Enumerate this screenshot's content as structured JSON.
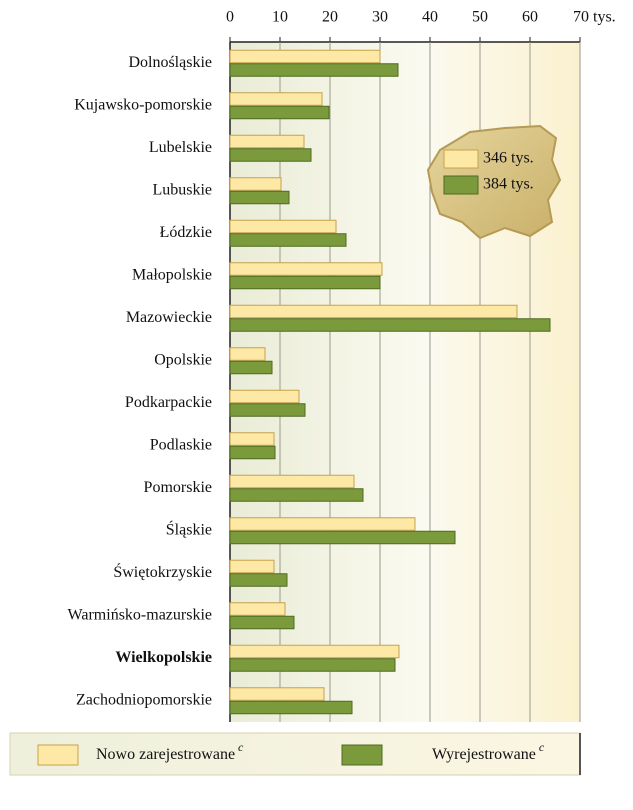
{
  "chart_data": {
    "type": "barh",
    "categories": [
      "Dolnośląskie",
      "Kujawsko-pomorskie",
      "Lubelskie",
      "Lubuskie",
      "Łódzkie",
      "Małopolskie",
      "Mazowieckie",
      "Opolskie",
      "Podkarpackie",
      "Podlaskie",
      "Pomorskie",
      "Śląskie",
      "Świętokrzyskie",
      "Warmińsko-mazurskie",
      "Wielkopolskie",
      "Zachodniopomorskie"
    ],
    "series": [
      {
        "name": "Nowo zarejestrowane",
        "note": "c",
        "color": "#fde8a6",
        "values": [
          30,
          18.4,
          14.8,
          10.2,
          21.2,
          30.4,
          57.4,
          7,
          13.8,
          8.8,
          24.8,
          37,
          8.8,
          11,
          33.8,
          18.8
        ]
      },
      {
        "name": "Wyrejestrowane",
        "note": "c",
        "color": "#7b9a3c",
        "values": [
          33.6,
          19.8,
          16.2,
          11.8,
          23.2,
          30,
          64,
          8.4,
          15,
          9,
          26.6,
          45,
          11.4,
          12.8,
          33,
          24.4
        ]
      }
    ],
    "inset_labels": [
      "346 tys.",
      "384 tys."
    ],
    "bold_category": 14,
    "xlim": [
      0,
      70
    ],
    "xticks": [
      0,
      10,
      20,
      30,
      40,
      50,
      60,
      {
        "value": 70,
        "label": "70 tys."
      }
    ],
    "grid": true
  }
}
